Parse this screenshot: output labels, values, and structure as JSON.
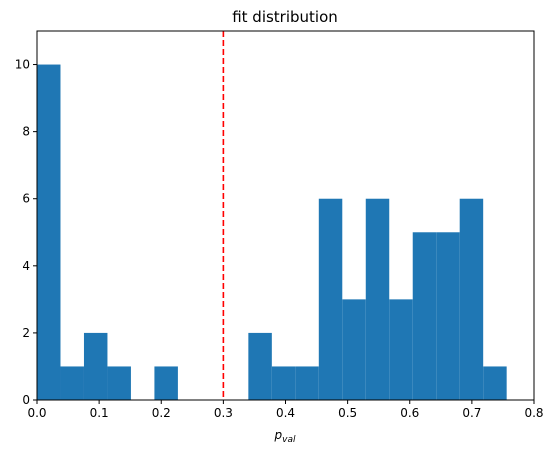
{
  "chart_data": {
    "type": "bar",
    "title": "fit distribution",
    "xlabel": {
      "main": "p",
      "sub": "val"
    },
    "ylabel": "",
    "xlim": [
      0,
      0.8
    ],
    "ylim": [
      0,
      11
    ],
    "xticks": [
      "0.0",
      "0.1",
      "0.2",
      "0.3",
      "0.4",
      "0.5",
      "0.6",
      "0.7",
      "0.8"
    ],
    "yticks": [
      "0",
      "2",
      "4",
      "6",
      "8",
      "10"
    ],
    "bar_color": "#1f77b4",
    "bins": [
      {
        "x0": 0.0,
        "x1": 0.0378,
        "count": 10
      },
      {
        "x0": 0.0378,
        "x1": 0.0756,
        "count": 1
      },
      {
        "x0": 0.0756,
        "x1": 0.1134,
        "count": 2
      },
      {
        "x0": 0.1134,
        "x1": 0.1512,
        "count": 1
      },
      {
        "x0": 0.1512,
        "x1": 0.189,
        "count": 0
      },
      {
        "x0": 0.189,
        "x1": 0.2268,
        "count": 1
      },
      {
        "x0": 0.2268,
        "x1": 0.2646,
        "count": 0
      },
      {
        "x0": 0.2646,
        "x1": 0.3024,
        "count": 0
      },
      {
        "x0": 0.3024,
        "x1": 0.3402,
        "count": 0
      },
      {
        "x0": 0.3402,
        "x1": 0.378,
        "count": 2
      },
      {
        "x0": 0.378,
        "x1": 0.4158,
        "count": 1
      },
      {
        "x0": 0.4158,
        "x1": 0.4536,
        "count": 1
      },
      {
        "x0": 0.4536,
        "x1": 0.4914,
        "count": 6
      },
      {
        "x0": 0.4914,
        "x1": 0.5292,
        "count": 3
      },
      {
        "x0": 0.5292,
        "x1": 0.567,
        "count": 6
      },
      {
        "x0": 0.567,
        "x1": 0.6048,
        "count": 3
      },
      {
        "x0": 0.6048,
        "x1": 0.6426,
        "count": 5
      },
      {
        "x0": 0.6426,
        "x1": 0.6804,
        "count": 5
      },
      {
        "x0": 0.6804,
        "x1": 0.7182,
        "count": 6
      },
      {
        "x0": 0.7182,
        "x1": 0.756,
        "count": 1
      }
    ],
    "threshold": {
      "x": 0.3,
      "color": "#ff0000",
      "style": "dashed"
    },
    "grid": false,
    "legend": "none"
  }
}
